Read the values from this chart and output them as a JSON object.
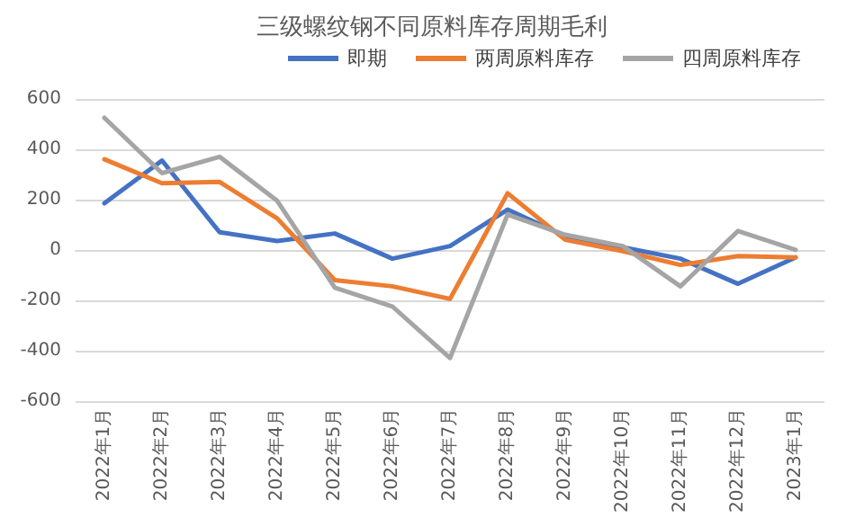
{
  "chart_data": {
    "type": "line",
    "title": "三级螺纹钢不同原料库存周期毛利",
    "categories": [
      "2022年1月",
      "2022年2月",
      "2022年3月",
      "2022年4月",
      "2022年5月",
      "2022年6月",
      "2022年7月",
      "2022年8月",
      "2022年9月",
      "2022年10月",
      "2022年11月",
      "2022年12月",
      "2023年1月"
    ],
    "series": [
      {
        "name": "即期",
        "color": "#4472c4",
        "values": [
          185,
          355,
          70,
          35,
          65,
          -35,
          15,
          160,
          55,
          10,
          -35,
          -135,
          -30
        ]
      },
      {
        "name": "两周原料库存",
        "color": "#ed7d31",
        "values": [
          360,
          265,
          270,
          125,
          -120,
          -145,
          -195,
          225,
          40,
          -5,
          -60,
          -25,
          -30
        ]
      },
      {
        "name": "四周原料库存",
        "color": "#a5a5a5",
        "values": [
          525,
          305,
          370,
          195,
          -150,
          -225,
          -430,
          140,
          60,
          15,
          -145,
          75,
          0
        ]
      }
    ],
    "ylim": [
      -600,
      600
    ],
    "yticks": [
      -600,
      -400,
      -200,
      0,
      200,
      400,
      600
    ],
    "grid": "y",
    "legend": "top right",
    "marker": "none",
    "line_style": "solid"
  }
}
